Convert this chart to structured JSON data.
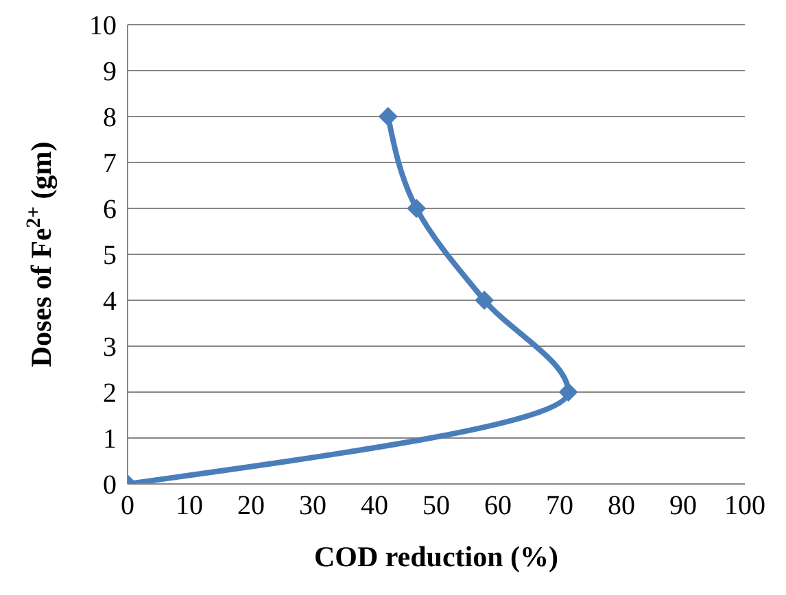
{
  "chart_data": {
    "type": "line",
    "xlabel": "COD reduction (%)",
    "ylabel": "Doses of Fe$^{2+}$ (gm)",
    "x": [
      0,
      71.4,
      57.8,
      46.8,
      42.2
    ],
    "series": [
      {
        "color": "#4a7ebb",
        "values": [
          0,
          2,
          4,
          6,
          8
        ]
      }
    ],
    "xlim": [
      0,
      100
    ],
    "xticks": [
      0,
      10,
      20,
      30,
      40,
      50,
      60,
      70,
      80,
      90,
      100
    ],
    "ylim": [
      0,
      10
    ],
    "yticks": [
      0,
      1,
      2,
      3,
      4,
      5,
      6,
      7,
      8,
      9,
      10
    ],
    "grid": "y",
    "marker": "diamond",
    "line_style": "solid"
  }
}
